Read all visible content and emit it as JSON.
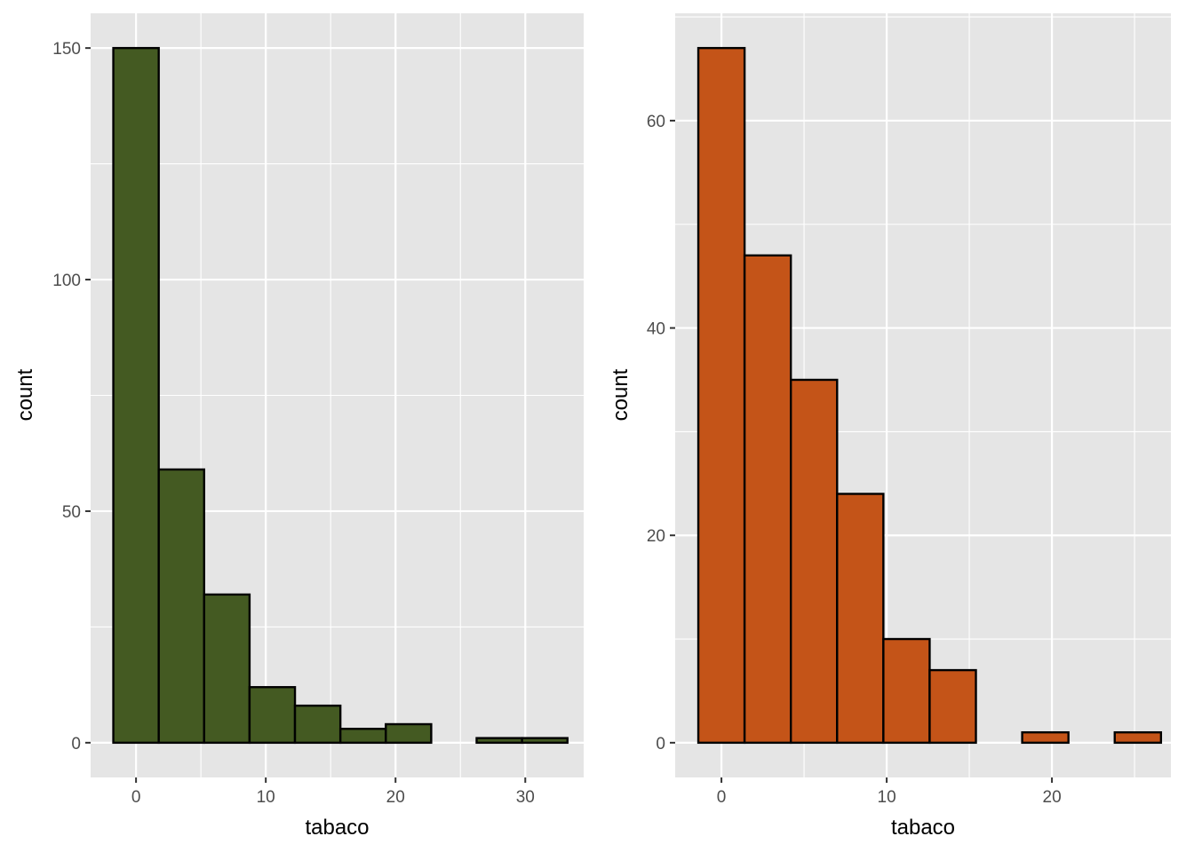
{
  "chart_data": [
    {
      "type": "bar",
      "title": "",
      "xlabel": "tabaco",
      "ylabel": "count",
      "fill": "#445a22",
      "stroke": "#000000",
      "panel_background": "#e5e5e5",
      "grid": true,
      "xlim": [
        -3.5,
        34.5
      ],
      "ylim": [
        -7.5,
        157.5
      ],
      "x_ticks": [
        0,
        10,
        20,
        30
      ],
      "y_ticks": [
        0,
        50,
        100,
        150
      ],
      "bins": [
        {
          "start": -1.75,
          "end": 1.75,
          "count": 150
        },
        {
          "start": 1.75,
          "end": 5.25,
          "count": 59
        },
        {
          "start": 5.25,
          "end": 8.75,
          "count": 32
        },
        {
          "start": 8.75,
          "end": 12.25,
          "count": 12
        },
        {
          "start": 12.25,
          "end": 15.75,
          "count": 8
        },
        {
          "start": 15.75,
          "end": 19.25,
          "count": 3
        },
        {
          "start": 19.25,
          "end": 22.75,
          "count": 4
        },
        {
          "start": 22.75,
          "end": 26.25,
          "count": 0
        },
        {
          "start": 26.25,
          "end": 29.75,
          "count": 1
        },
        {
          "start": 29.75,
          "end": 33.25,
          "count": 1
        }
      ]
    },
    {
      "type": "bar",
      "title": "",
      "xlabel": "tabaco",
      "ylabel": "count",
      "fill": "#c45418",
      "stroke": "#000000",
      "panel_background": "#e5e5e5",
      "grid": true,
      "xlim": [
        -2.8,
        27.2
      ],
      "ylim": [
        -3.35,
        70.35
      ],
      "x_ticks": [
        0,
        10,
        20
      ],
      "y_ticks": [
        0,
        20,
        40,
        60
      ],
      "bins": [
        {
          "start": -1.4,
          "end": 1.4,
          "count": 67
        },
        {
          "start": 1.4,
          "end": 4.2,
          "count": 47
        },
        {
          "start": 4.2,
          "end": 7.0,
          "count": 35
        },
        {
          "start": 7.0,
          "end": 9.8,
          "count": 24
        },
        {
          "start": 9.8,
          "end": 12.6,
          "count": 10
        },
        {
          "start": 12.6,
          "end": 15.4,
          "count": 7
        },
        {
          "start": 15.4,
          "end": 18.2,
          "count": 0
        },
        {
          "start": 18.2,
          "end": 21.0,
          "count": 1
        },
        {
          "start": 21.0,
          "end": 23.8,
          "count": 0
        },
        {
          "start": 23.8,
          "end": 26.6,
          "count": 1
        }
      ]
    }
  ]
}
